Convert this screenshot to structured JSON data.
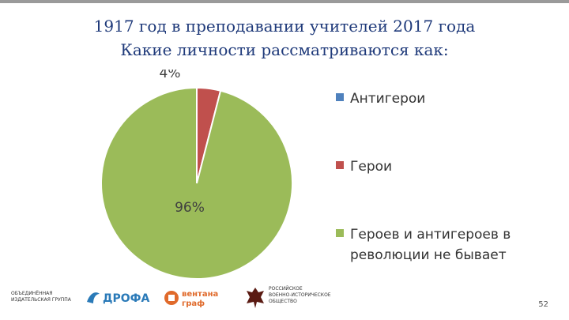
{
  "title": {
    "line1": "1917 год в преподавании учителей 2017 года",
    "line2": "Какие личности рассматриваются как:"
  },
  "chart_data": {
    "type": "pie",
    "categories": [
      "Антигерои",
      "Герои",
      "Героев и антигероев в революции не бывает"
    ],
    "values": [
      0,
      4,
      96
    ],
    "data_labels": [
      "",
      "4%",
      "96%"
    ],
    "colors": [
      "#4f81bd",
      "#c0504d",
      "#9bbb59"
    ],
    "legend_position": "right"
  },
  "legend": {
    "items": [
      "Антигерои",
      "Герои",
      "Героев и антигероев в революции не бывает"
    ]
  },
  "footer": {
    "logo1": "ОБЪЕДИНЁННАЯ\nИЗДАТЕЛЬСКАЯ ГРУППА",
    "logo2": "ДРОФА",
    "logo3a": "вентана",
    "logo3b": "граф",
    "logo4": "РОССИЙСКОЕ\nВОЕННО-ИСТОРИЧЕСКОЕ\nОБЩЕСТВО",
    "page_number": "52",
    "colors": {
      "drofa": "#2a7ab8",
      "ventana": "#e06a2b"
    }
  }
}
